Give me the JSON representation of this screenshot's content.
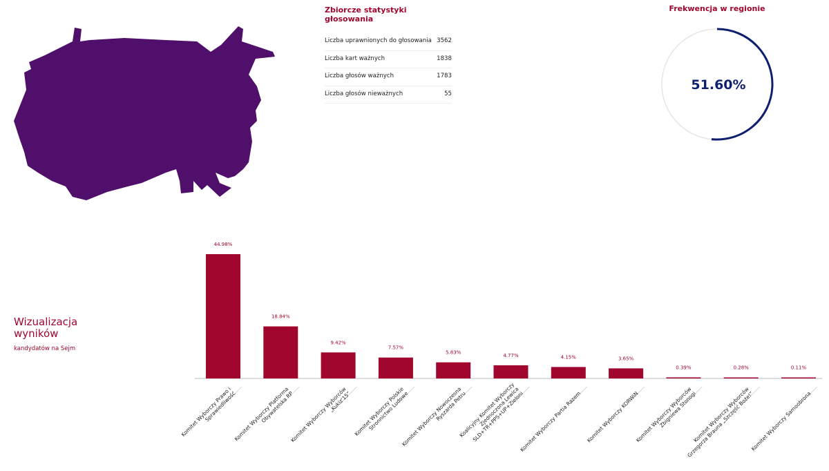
{
  "stats": {
    "title": "Zbiorcze statystyki głosowania",
    "rows": [
      {
        "label": "Liczba uprawnionych do głosowania",
        "value": "3562"
      },
      {
        "label": "Liczba kart ważnych",
        "value": "1838"
      },
      {
        "label": "Liczba głosów ważnych",
        "value": "1783"
      },
      {
        "label": "Liczba głosów nieważnych",
        "value": "55"
      }
    ]
  },
  "turnout": {
    "title": "Frekwencja w regionie",
    "value_label": "51.60%",
    "value": 51.6,
    "color": "#0d1f6e"
  },
  "visual": {
    "title_line1": "Wizualizacja",
    "title_line2": "wyników",
    "subtitle": "kandydatów na Sejm"
  },
  "map": {
    "color": "#4f0f6b"
  },
  "chart_data": {
    "type": "bar",
    "ylim": [
      0,
      45
    ],
    "bar_color": "#a0062e",
    "categories": [
      "Komitet Wyborczy Prawo i Sprawiedliwość",
      "Komitet Wyborczy Platforma Obywatelska RP",
      "Komitet Wyborczy Wyborców „Kukiz'15”",
      "Komitet Wyborczy Polskie Stronnictwo Ludowe",
      "Komitet Wyborczy Nowoczesna Ryszarda Petru",
      "Koalicyjny Komitet Wyborczy Zjednoczona Lewica SLD+TR+PPS+UP+Zieloni",
      "Komitet Wyborczy Partia Razem",
      "Komitet Wyborczy KORWiN",
      "Komitet Wyborczy Wyborców Zbigniewa Stonogi",
      "Komitet Wyborczy Wyborców Grzegorza Brauna „Szczęść Boże!”",
      "Komitet Wyborczy Samoobrona"
    ],
    "values": [
      44.98,
      18.84,
      9.42,
      7.57,
      5.83,
      4.77,
      4.15,
      3.65,
      0.39,
      0.28,
      0.11
    ],
    "labels": [
      "44.98%",
      "18.84%",
      "9.42%",
      "7.57%",
      "5.83%",
      "4.77%",
      "4.15%",
      "3.65%",
      "0.39%",
      "0.28%",
      "0.11%"
    ]
  }
}
